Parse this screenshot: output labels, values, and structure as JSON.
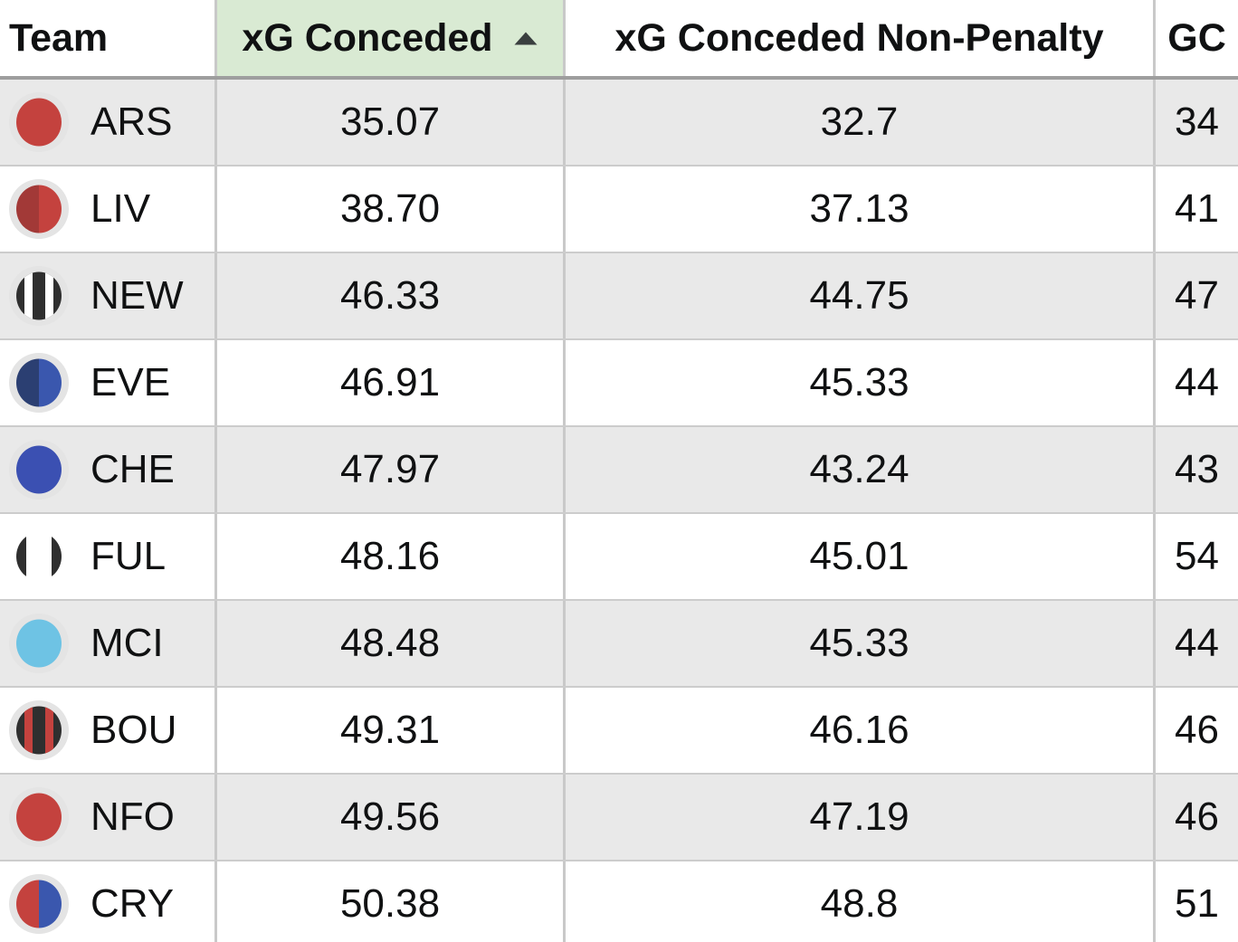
{
  "table": {
    "columns": [
      {
        "label": "Team",
        "sorted": false
      },
      {
        "label": "xG Conceded",
        "sorted": true,
        "sort_direction": "ascending"
      },
      {
        "label": "xG Conceded Non-Penalty",
        "sorted": false
      },
      {
        "label": "GC",
        "sorted": false
      }
    ],
    "rows": [
      {
        "team": "ARS",
        "xg_conceded": "35.07",
        "xg_conceded_non_penalty": "32.7",
        "gc": "34",
        "badge": {
          "icon": "team-badge-ars",
          "style": "solid",
          "colors": [
            "#C4423E"
          ],
          "ring": "#E4E4E4"
        }
      },
      {
        "team": "LIV",
        "xg_conceded": "38.70",
        "xg_conceded_non_penalty": "37.13",
        "gc": "41",
        "badge": {
          "icon": "team-badge-liv",
          "style": "split",
          "colors": [
            "#A23937",
            "#C4423E"
          ],
          "ring": "#E4E4E4"
        }
      },
      {
        "team": "NEW",
        "xg_conceded": "46.33",
        "xg_conceded_non_penalty": "44.75",
        "gc": "47",
        "badge": {
          "icon": "team-badge-new",
          "style": "stripes",
          "colors": [
            "#2F2F2F",
            "#FFFFFF"
          ],
          "ring": "#E4E4E4"
        }
      },
      {
        "team": "EVE",
        "xg_conceded": "46.91",
        "xg_conceded_non_penalty": "45.33",
        "gc": "44",
        "badge": {
          "icon": "team-badge-eve",
          "style": "split",
          "colors": [
            "#2B3F72",
            "#3A57AE"
          ],
          "ring": "#E4E4E4"
        }
      },
      {
        "team": "CHE",
        "xg_conceded": "47.97",
        "xg_conceded_non_penalty": "43.24",
        "gc": "43",
        "badge": {
          "icon": "team-badge-che",
          "style": "solid",
          "colors": [
            "#3B50B2"
          ],
          "ring": "#E4E4E4"
        }
      },
      {
        "team": "FUL",
        "xg_conceded": "48.16",
        "xg_conceded_non_penalty": "45.01",
        "gc": "54",
        "badge": {
          "icon": "team-badge-ful",
          "style": "edges",
          "colors": [
            "#FFFFFF",
            "#2F2F2F"
          ],
          "ring": "#FFFFFF"
        }
      },
      {
        "team": "MCI",
        "xg_conceded": "48.48",
        "xg_conceded_non_penalty": "45.33",
        "gc": "44",
        "badge": {
          "icon": "team-badge-mci",
          "style": "solid",
          "colors": [
            "#6EC3E4"
          ],
          "ring": "#E4E4E4"
        }
      },
      {
        "team": "BOU",
        "xg_conceded": "49.31",
        "xg_conceded_non_penalty": "46.16",
        "gc": "46",
        "badge": {
          "icon": "team-badge-bou",
          "style": "stripes",
          "colors": [
            "#2F2F2F",
            "#C4423E"
          ],
          "ring": "#E4E4E4"
        }
      },
      {
        "team": "NFO",
        "xg_conceded": "49.56",
        "xg_conceded_non_penalty": "47.19",
        "gc": "46",
        "badge": {
          "icon": "team-badge-nfo",
          "style": "solid",
          "colors": [
            "#C4423E"
          ],
          "ring": "#E4E4E4"
        }
      },
      {
        "team": "CRY",
        "xg_conceded": "50.38",
        "xg_conceded_non_penalty": "48.8",
        "gc": "51",
        "badge": {
          "icon": "team-badge-cry",
          "style": "split",
          "colors": [
            "#C4423E",
            "#3A57AE"
          ],
          "ring": "#E4E4E4"
        }
      }
    ]
  },
  "icons": {
    "sort_ascending": "▲"
  },
  "colors": {
    "sorted_column_header_bg": "#D9EAD3",
    "striped_row_bg": "#E9E9E9",
    "header_bottom_border": "#9E9E9E",
    "row_border": "#CCCCCC",
    "column_border": "#C9C9C9",
    "sort_arrow": "#3A3F3F",
    "text": "#101112"
  }
}
